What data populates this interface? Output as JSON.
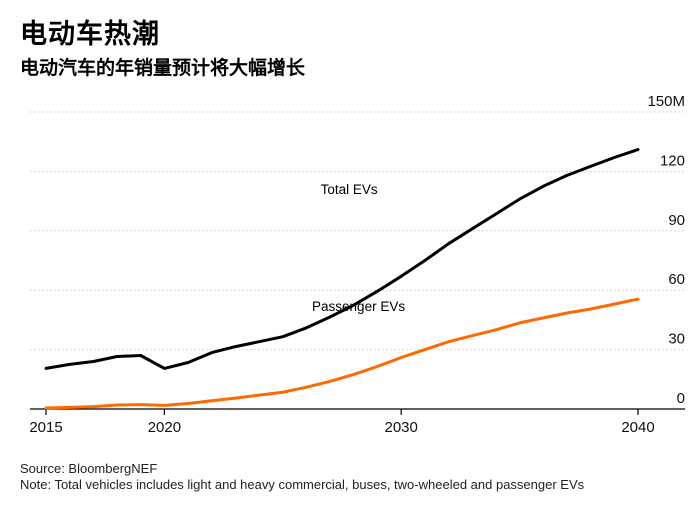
{
  "header": {
    "title": "电动车热潮",
    "subtitle": "电动汽车的年销量预计将大幅增长"
  },
  "footer": {
    "source": "Source: BloombergNEF",
    "note": "Note: Total vehicles includes light and heavy commercial, buses, two-wheeled and passenger EVs"
  },
  "chart_data": {
    "type": "line",
    "title": "电动车热潮",
    "subtitle": "电动汽车的年销量预计将大幅增长",
    "xlabel": "",
    "ylabel": "",
    "unit": "M",
    "xlim": [
      2015,
      2041
    ],
    "ylim": [
      0,
      150
    ],
    "x_ticks": [
      2015,
      2020,
      2030,
      2040
    ],
    "y_ticks": [
      0,
      30,
      60,
      90,
      120,
      150
    ],
    "y_tick_labels": [
      "0",
      "30",
      "60",
      "90",
      "120",
      "150M"
    ],
    "grid": true,
    "series": [
      {
        "name": "Total EVs",
        "color": "#000000",
        "x": [
          2015,
          2016,
          2017,
          2018,
          2019,
          2020,
          2021,
          2022,
          2023,
          2024,
          2025,
          2026,
          2027,
          2028,
          2029,
          2030,
          2031,
          2032,
          2033,
          2034,
          2035,
          2036,
          2037,
          2038,
          2039,
          2040
        ],
        "values": [
          20.5,
          22.5,
          24,
          26.5,
          27,
          20.5,
          23.5,
          28.5,
          31.5,
          34,
          36.5,
          41,
          46.5,
          52.5,
          59.5,
          67,
          75,
          83.5,
          91,
          98.5,
          106,
          112.5,
          118,
          122.5,
          127,
          131
        ]
      },
      {
        "name": "Passenger EVs",
        "color": "#ff6a00",
        "x": [
          2015,
          2016,
          2017,
          2018,
          2019,
          2020,
          2021,
          2022,
          2023,
          2024,
          2025,
          2026,
          2027,
          2028,
          2029,
          2030,
          2031,
          2032,
          2033,
          2034,
          2035,
          2036,
          2037,
          2038,
          2039,
          2040
        ],
        "values": [
          0.5,
          0.8,
          1.2,
          2,
          2.2,
          1.8,
          2.8,
          4.2,
          5.5,
          7,
          8.5,
          11,
          14,
          17.5,
          21.5,
          26,
          30,
          34,
          37,
          40,
          43.5,
          46,
          48.5,
          50.5,
          53,
          55.5
        ]
      }
    ],
    "annotations": [
      {
        "text": "Total EVs",
        "series": "Total EVs",
        "x": 2027.8,
        "y": 108.5
      },
      {
        "text": "Passenger EVs",
        "series": "Passenger EVs",
        "x": 2028.2,
        "y": 49.5
      }
    ]
  }
}
